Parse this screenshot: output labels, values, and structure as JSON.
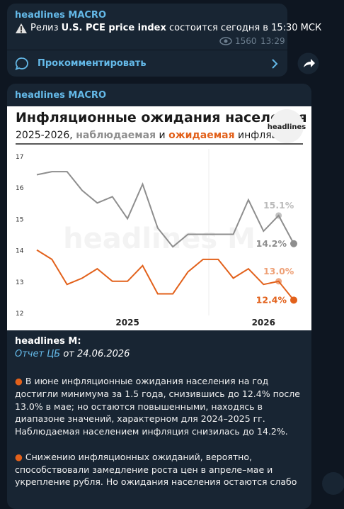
{
  "message1": {
    "author": "headlines MACRO",
    "text_before": "Релиз ",
    "text_bold": "U.S. PCE price index",
    "text_after": " состоится сегодня в 15:30 МСК",
    "views": "1560",
    "time": "13:29",
    "comment_button": "Прокомментировать"
  },
  "message2": {
    "author": "headlines MACRO",
    "quote_author": "headlines M:",
    "source_link": "Отчет ЦБ",
    "source_date": "от 24.06.2026",
    "paragraphs": [
      "В июне инфляционные ожидания населения на год достигли минимума за 1.5 года, снизившись до 12.4% после 13.0% в мае; но остаются повышенными, находясь в диапазоне значений, характерном для 2024–2025 гг. Наблюдаемая населением инфляция снизилась до 14.2%.",
      "Снижению инфляционных ожиданий, вероятно, способствовали замедление роста цен в апреле–мае и укрепление рубля. Но ожидания населения остаются слабо"
    ]
  },
  "chart_data": {
    "type": "line",
    "title": "Инфляционные ожидания населения",
    "subtitle_prefix": "2025-2026, ",
    "subtitle_observed": "наблюдаемая",
    "subtitle_and": " и ",
    "subtitle_expected": "ожидаемая",
    "subtitle_suffix": " инфляция",
    "logo": "headlines",
    "watermark": "headlines M",
    "categories": [
      null,
      null,
      null,
      null,
      null,
      null,
      "2025",
      null,
      null,
      null,
      null,
      null,
      null,
      null,
      null,
      "2026",
      null,
      null
    ],
    "series": [
      {
        "name": "наблюдаемая",
        "color": "#8e8e8e",
        "values": [
          16.4,
          16.5,
          16.5,
          15.9,
          15.5,
          15.7,
          15.0,
          16.1,
          14.7,
          14.1,
          14.5,
          14.5,
          14.5,
          14.5,
          15.6,
          14.6,
          15.1,
          14.2
        ],
        "value_labels": [
          null,
          null,
          null,
          null,
          null,
          null,
          null,
          null,
          null,
          null,
          null,
          null,
          null,
          null,
          null,
          null,
          "15.1%",
          "14.2%"
        ]
      },
      {
        "name": "ожидаемая",
        "color": "#e2611b",
        "values": [
          14.0,
          13.7,
          12.9,
          13.1,
          13.4,
          13.0,
          13.0,
          13.5,
          12.6,
          12.6,
          13.3,
          13.7,
          13.7,
          13.1,
          13.4,
          12.9,
          13.0,
          12.4
        ],
        "value_labels": [
          null,
          null,
          null,
          null,
          null,
          null,
          null,
          null,
          null,
          null,
          null,
          null,
          null,
          null,
          null,
          null,
          "13.0%",
          "12.4%"
        ]
      }
    ],
    "ylim": [
      12,
      17
    ],
    "yticks": [
      12,
      13,
      14,
      15,
      16,
      17
    ],
    "grid": false
  }
}
